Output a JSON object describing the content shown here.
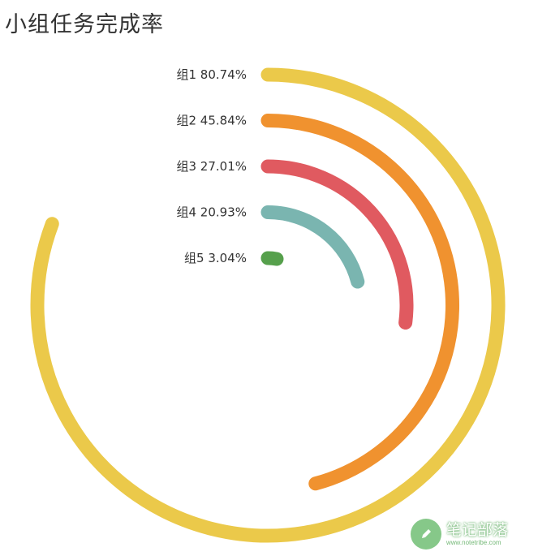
{
  "chart_data": {
    "type": "radial-bar",
    "title": "小组任务完成率",
    "unit": "%",
    "max": 100,
    "categories": [
      "组1",
      "组2",
      "组3",
      "组4",
      "组5"
    ],
    "values": [
      80.74,
      45.84,
      27.01,
      20.93,
      3.04
    ],
    "value_labels": [
      "80.74%",
      "45.84%",
      "27.01%",
      "20.93%",
      "3.04%"
    ],
    "colors": [
      "#ebc94a",
      "#f0922f",
      "#e05a60",
      "#7ab5b0",
      "#56a04c"
    ],
    "start_angle": "top",
    "direction": "clockwise",
    "labels_position": "left-of-start"
  },
  "watermark": {
    "name": "笔记部落",
    "url": "www.notetribe.com"
  }
}
